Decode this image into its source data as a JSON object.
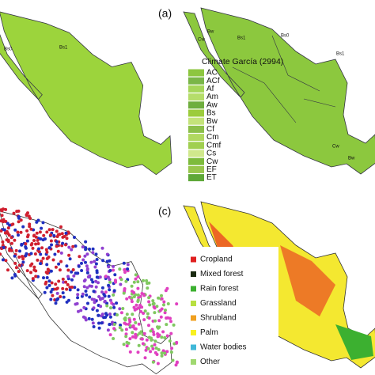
{
  "panels": [
    {
      "label": "(a)"
    },
    {
      "label": "(c)"
    }
  ],
  "climate_legend": {
    "title": "Climate García (2994)",
    "items": [
      {
        "label": "AC",
        "color": "#8dc63f"
      },
      {
        "label": "ACf",
        "color": "#7ab648"
      },
      {
        "label": "Af",
        "color": "#a6d65a"
      },
      {
        "label": "Am",
        "color": "#b5dd6a"
      },
      {
        "label": "Aw",
        "color": "#6fae3e"
      },
      {
        "label": "Bs",
        "color": "#9ccc3c"
      },
      {
        "label": "Bw",
        "color": "#c4e37a"
      },
      {
        "label": "Cf",
        "color": "#8cbf4a"
      },
      {
        "label": "Cm",
        "color": "#b0d860"
      },
      {
        "label": "Cmf",
        "color": "#a0cf50"
      },
      {
        "label": "Cs",
        "color": "#d0e88c"
      },
      {
        "label": "Cw",
        "color": "#7dbb3c"
      },
      {
        "label": "EF",
        "color": "#98c64c"
      },
      {
        "label": "ET",
        "color": "#5ea838"
      }
    ]
  },
  "landcover_legend": {
    "items": [
      {
        "label": "Cropland",
        "color": "#e02020"
      },
      {
        "label": "Mixed forest",
        "color": "#1a2a10"
      },
      {
        "label": "Rain forest",
        "color": "#3cb030"
      },
      {
        "label": "Grassland",
        "color": "#b8e040"
      },
      {
        "label": "Shrubland",
        "color": "#f0a020"
      },
      {
        "label": "Palm",
        "color": "#f8f020"
      },
      {
        "label": "Water bodies",
        "color": "#40b8d8"
      },
      {
        "label": "Other",
        "color": "#a0d870"
      }
    ]
  },
  "map_labels": [
    "Bs0",
    "Bs1",
    "Bw",
    "Cw",
    "Bs1",
    "Bw",
    "Bs0",
    "Bs1",
    "Cw",
    "Bw"
  ]
}
